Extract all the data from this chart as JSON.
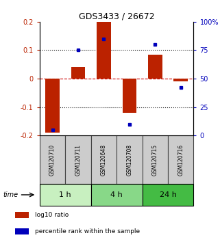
{
  "title": "GDS3433 / 26672",
  "samples": [
    "GSM120710",
    "GSM120711",
    "GSM120648",
    "GSM120708",
    "GSM120715",
    "GSM120716"
  ],
  "log10_ratio": [
    -0.19,
    0.04,
    0.2,
    -0.12,
    0.085,
    -0.01
  ],
  "percentile_rank": [
    5,
    75,
    85,
    10,
    80,
    42
  ],
  "groups": [
    {
      "label": "1 h",
      "cols": [
        0,
        1
      ],
      "color": "#c8f0c0"
    },
    {
      "label": "4 h",
      "cols": [
        2,
        3
      ],
      "color": "#88d888"
    },
    {
      "label": "24 h",
      "cols": [
        4,
        5
      ],
      "color": "#44bb44"
    }
  ],
  "bar_color": "#bb2200",
  "dot_color": "#0000bb",
  "ylim_left": [
    -0.2,
    0.2
  ],
  "ylim_right": [
    0,
    100
  ],
  "yticks_left": [
    -0.2,
    -0.1,
    0.0,
    0.1,
    0.2
  ],
  "yticks_right": [
    0,
    25,
    50,
    75,
    100
  ],
  "ytick_labels_right": [
    "0",
    "25",
    "50",
    "75",
    "100%"
  ],
  "hline_color": "#cc0000",
  "dotted_color": "#222222",
  "sample_box_color": "#cccccc",
  "sample_box_edge": "#444444",
  "time_label": "time",
  "legend_items": [
    {
      "label": "log10 ratio",
      "color": "#bb2200"
    },
    {
      "label": "percentile rank within the sample",
      "color": "#0000bb"
    }
  ]
}
